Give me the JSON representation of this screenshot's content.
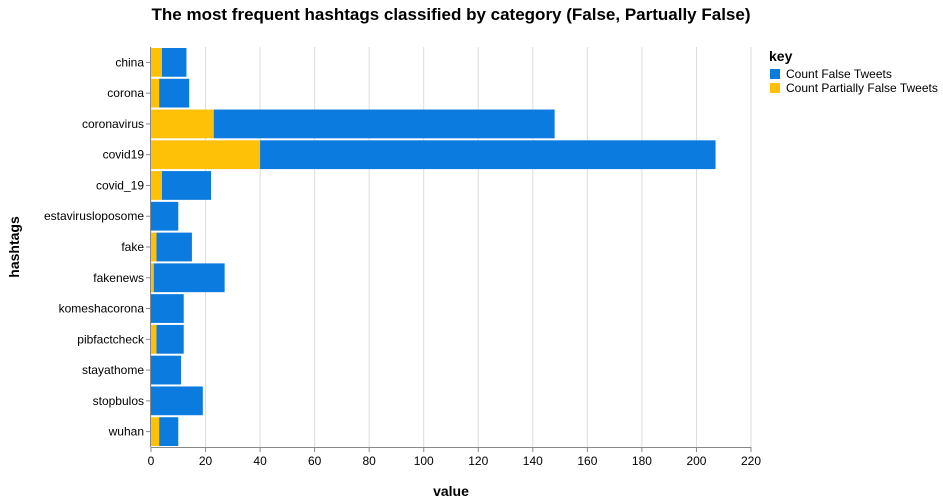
{
  "chart_data": {
    "type": "bar",
    "orientation": "horizontal",
    "stacked": true,
    "title": "The most frequent hashtags classified by category (False, Partually False)",
    "xlabel": "value",
    "ylabel": "hashtags",
    "xlim": [
      0,
      220
    ],
    "x_ticks": [
      0,
      20,
      40,
      60,
      80,
      100,
      120,
      140,
      160,
      180,
      200,
      220
    ],
    "grid": true,
    "legend_position": "right",
    "legend_title": "key",
    "categories": [
      "china",
      "corona",
      "coronavirus",
      "covid19",
      "covid_19",
      "estavirusloposome",
      "fake",
      "fakenews",
      "komeshacorona",
      "pibfactcheck",
      "stayathome",
      "stopbulos",
      "wuhan"
    ],
    "series": [
      {
        "name": "Count Partially False Tweets",
        "color": "#FFC107",
        "values": [
          4,
          3,
          23,
          40,
          4,
          0,
          2,
          1,
          0,
          2,
          0,
          0,
          3
        ]
      },
      {
        "name": "Count False Tweets",
        "color": "#0B7BE0",
        "values": [
          9,
          11,
          125,
          167,
          18,
          10,
          13,
          26,
          12,
          10,
          11,
          19,
          7
        ]
      }
    ],
    "legend_order": [
      "Count False Tweets",
      "Count Partially False Tweets"
    ]
  }
}
